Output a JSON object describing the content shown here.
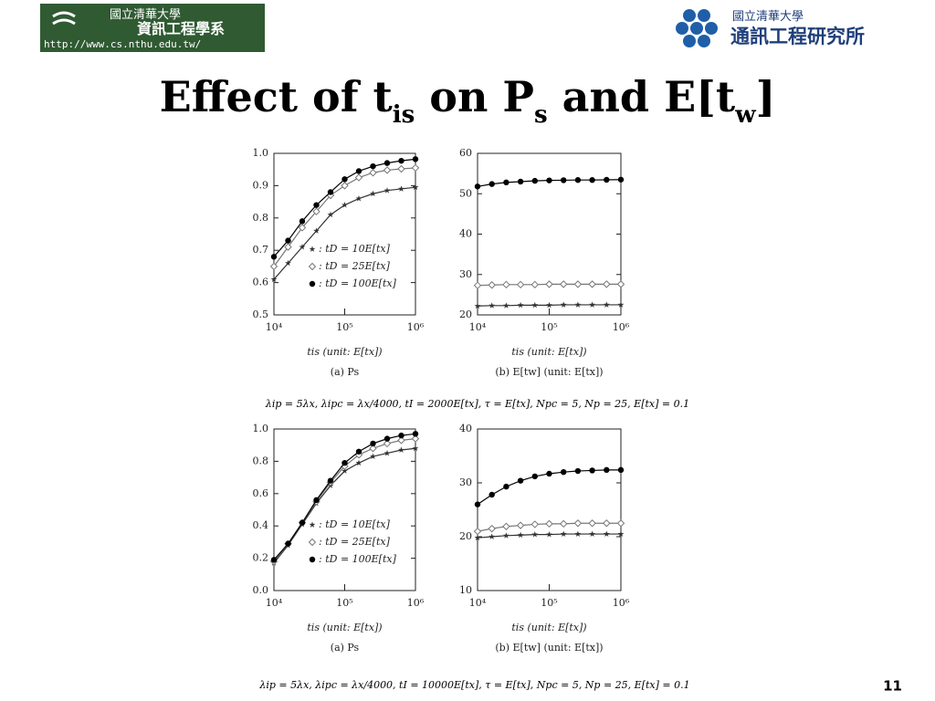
{
  "header": {
    "left_school": "國立清華大學",
    "left_dept": "資訊工程學系",
    "left_url": "http://www.cs.nthu.edu.tw/",
    "right_school": "國立清華大學",
    "right_inst": "通訊工程研究所"
  },
  "title": {
    "part1": "Effect of t",
    "sub1": "is",
    "part2": " on P",
    "sub2": "s",
    "part3": " and E[t",
    "sub3": "w",
    "part4": "]"
  },
  "chart_data": [
    {
      "type": "line",
      "xscale": "log",
      "xlabel": "tis (unit: E[tx])",
      "subtitle": "(a) Ps",
      "x": [
        10000,
        15849,
        25119,
        39811,
        63096,
        100000,
        158489,
        251189,
        398107,
        630957,
        1000000
      ],
      "xlim": [
        10000,
        1000000
      ],
      "xticks": [
        {
          "value": 10000,
          "label": "10⁴"
        },
        {
          "value": 100000,
          "label": "10⁵"
        },
        {
          "value": 1000000,
          "label": "10⁶"
        }
      ],
      "ylim": [
        0.5,
        1
      ],
      "yticks": [
        0.5,
        0.6,
        0.7,
        0.8,
        0.9,
        {
          "value": 1,
          "label": "1.0"
        }
      ],
      "legend": "lower right",
      "series": [
        {
          "name": ": tD = 10E[tx]",
          "marker": "star",
          "color": "#333333",
          "values": [
            0.61,
            0.66,
            0.71,
            0.76,
            0.81,
            0.84,
            0.86,
            0.875,
            0.885,
            0.89,
            0.895
          ]
        },
        {
          "name": ": tD = 25E[tx]",
          "marker": "diamond",
          "color": "#777777",
          "values": [
            0.65,
            0.71,
            0.77,
            0.82,
            0.87,
            0.9,
            0.925,
            0.94,
            0.948,
            0.952,
            0.955
          ]
        },
        {
          "name": ": tD = 100E[tx]",
          "marker": "circle",
          "color": "#000000",
          "values": [
            0.68,
            0.73,
            0.79,
            0.84,
            0.88,
            0.92,
            0.945,
            0.96,
            0.97,
            0.977,
            0.982
          ]
        }
      ]
    },
    {
      "type": "line",
      "xscale": "log",
      "xlabel": "tis (unit: E[tx])",
      "subtitle": "(b) E[tw] (unit: E[tx])",
      "x": [
        10000,
        15849,
        25119,
        39811,
        63096,
        100000,
        158489,
        251189,
        398107,
        630957,
        1000000
      ],
      "xlim": [
        10000,
        1000000
      ],
      "xticks": [
        {
          "value": 10000,
          "label": "10⁴"
        },
        {
          "value": 100000,
          "label": "10⁵"
        },
        {
          "value": 1000000,
          "label": "10⁶"
        }
      ],
      "ylim": [
        20,
        60
      ],
      "yticks": [
        20,
        30,
        40,
        50,
        60
      ],
      "series": [
        {
          "marker": "star",
          "color": "#333333",
          "values": [
            22.2,
            22.3,
            22.3,
            22.4,
            22.4,
            22.4,
            22.5,
            22.5,
            22.5,
            22.5,
            22.5
          ]
        },
        {
          "marker": "diamond",
          "color": "#777777",
          "values": [
            27.3,
            27.4,
            27.5,
            27.5,
            27.5,
            27.6,
            27.6,
            27.6,
            27.6,
            27.6,
            27.6
          ]
        },
        {
          "marker": "circle",
          "color": "#000000",
          "values": [
            51.8,
            52.4,
            52.8,
            53.0,
            53.2,
            53.3,
            53.35,
            53.4,
            53.4,
            53.45,
            53.5
          ]
        }
      ]
    },
    {
      "type": "line",
      "xscale": "log",
      "xlabel": "tis (unit: E[tx])",
      "subtitle": "(a) Ps",
      "x": [
        10000,
        15849,
        25119,
        39811,
        63096,
        100000,
        158489,
        251189,
        398107,
        630957,
        1000000
      ],
      "xlim": [
        10000,
        1000000
      ],
      "xticks": [
        {
          "value": 10000,
          "label": "10⁴"
        },
        {
          "value": 100000,
          "label": "10⁵"
        },
        {
          "value": 1000000,
          "label": "10⁶"
        }
      ],
      "ylim": [
        0,
        1
      ],
      "yticks": [
        {
          "value": 0,
          "label": "0.0"
        },
        0.2,
        0.4,
        0.6,
        0.8,
        {
          "value": 1,
          "label": "1.0"
        }
      ],
      "legend": "lower right",
      "series": [
        {
          "name": ": tD = 10E[tx]",
          "marker": "star",
          "color": "#333333",
          "values": [
            0.17,
            0.28,
            0.41,
            0.54,
            0.65,
            0.74,
            0.79,
            0.83,
            0.85,
            0.87,
            0.88
          ]
        },
        {
          "name": ": tD = 25E[tx]",
          "marker": "diamond",
          "color": "#777777",
          "values": [
            0.18,
            0.29,
            0.42,
            0.55,
            0.67,
            0.77,
            0.84,
            0.88,
            0.91,
            0.93,
            0.94
          ]
        },
        {
          "name": ": tD = 100E[tx]",
          "marker": "circle",
          "color": "#000000",
          "values": [
            0.19,
            0.29,
            0.42,
            0.56,
            0.68,
            0.79,
            0.86,
            0.91,
            0.94,
            0.96,
            0.97
          ]
        }
      ]
    },
    {
      "type": "line",
      "xscale": "log",
      "xlabel": "tis (unit: E[tx])",
      "subtitle": "(b) E[tw] (unit: E[tx])",
      "x": [
        10000,
        15849,
        25119,
        39811,
        63096,
        100000,
        158489,
        251189,
        398107,
        630957,
        1000000
      ],
      "xlim": [
        10000,
        1000000
      ],
      "xticks": [
        {
          "value": 10000,
          "label": "10⁴"
        },
        {
          "value": 100000,
          "label": "10⁵"
        },
        {
          "value": 1000000,
          "label": "10⁶"
        }
      ],
      "ylim": [
        10,
        40
      ],
      "yticks": [
        10,
        20,
        30,
        40
      ],
      "series": [
        {
          "marker": "star",
          "color": "#333333",
          "values": [
            19.8,
            20.0,
            20.2,
            20.3,
            20.4,
            20.4,
            20.5,
            20.5,
            20.5,
            20.5,
            20.5
          ]
        },
        {
          "marker": "diamond",
          "color": "#777777",
          "values": [
            21.0,
            21.5,
            21.9,
            22.1,
            22.3,
            22.4,
            22.4,
            22.5,
            22.5,
            22.5,
            22.5
          ]
        },
        {
          "marker": "circle",
          "color": "#000000",
          "values": [
            26.0,
            27.8,
            29.3,
            30.4,
            31.2,
            31.7,
            32.0,
            32.2,
            32.3,
            32.4,
            32.4
          ]
        }
      ]
    }
  ],
  "captions": [
    "λip = 5λx, λipc = λx/4000, tI = 2000E[tx], τ = E[tx], Npc = 5, Np = 25, E[tx] = 0.1",
    "λip = 5λx, λipc = λx/4000, tI = 10000E[tx], τ = E[tx], Npc = 5, Np = 25, E[tx] = 0.1"
  ],
  "page_number": "11"
}
